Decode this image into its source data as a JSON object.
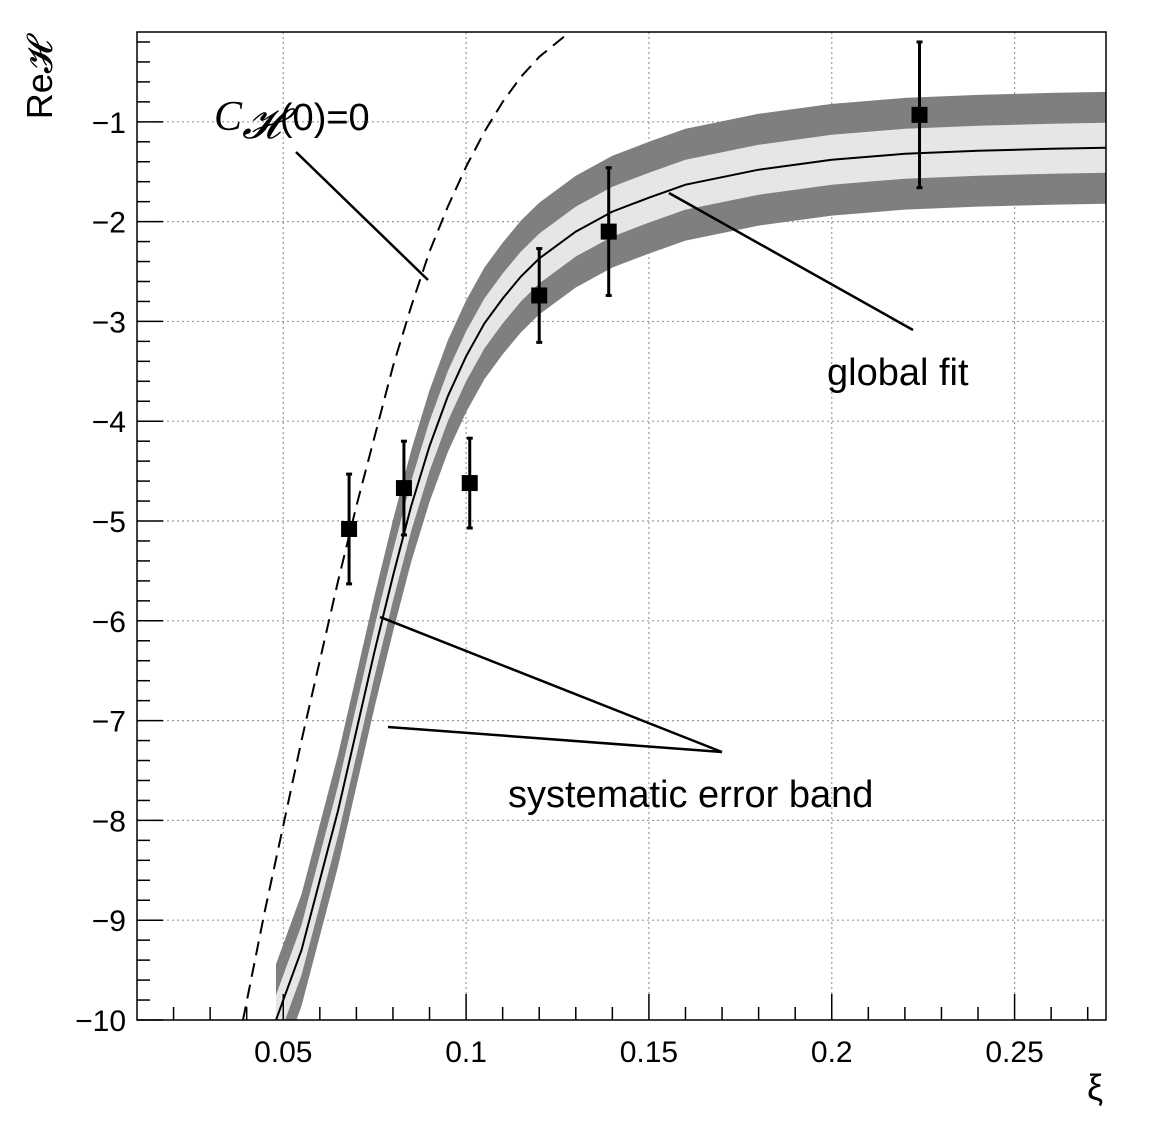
{
  "chart_data": {
    "type": "scatter",
    "xlabel": "ξ",
    "ylabel": "Re𝓗",
    "xlim": [
      0.01,
      0.275
    ],
    "ylim": [
      -10,
      -0.1
    ],
    "grid": true,
    "x_ticks": [
      "0.05",
      "0.1",
      "0.15",
      "0.2",
      "0.25"
    ],
    "x_tick_values": [
      0.05,
      0.1,
      0.15,
      0.2,
      0.25
    ],
    "y_ticks": [
      "−1",
      "−2",
      "−3",
      "−4",
      "−5",
      "−6",
      "−7",
      "−8",
      "−9",
      "−10"
    ],
    "y_tick_values": [
      -1,
      -2,
      -3,
      -4,
      -5,
      -6,
      -7,
      -8,
      -9,
      -10
    ],
    "points": [
      {
        "x": 0.068,
        "y": -5.08,
        "err": 0.55
      },
      {
        "x": 0.083,
        "y": -4.67,
        "err": 0.47
      },
      {
        "x": 0.101,
        "y": -4.62,
        "err": 0.45
      },
      {
        "x": 0.12,
        "y": -2.74,
        "err": 0.47
      },
      {
        "x": 0.139,
        "y": -2.1,
        "err": 0.64
      },
      {
        "x": 0.224,
        "y": -0.93,
        "err": 0.73
      }
    ],
    "global_fit": {
      "x": [
        0.048,
        0.055,
        0.06,
        0.065,
        0.07,
        0.075,
        0.08,
        0.085,
        0.09,
        0.095,
        0.1,
        0.105,
        0.11,
        0.115,
        0.12,
        0.13,
        0.14,
        0.15,
        0.16,
        0.18,
        0.2,
        0.22,
        0.24,
        0.26,
        0.275
      ],
      "y": [
        -10.0,
        -9.3,
        -8.6,
        -7.9,
        -7.1,
        -6.3,
        -5.55,
        -4.85,
        -4.25,
        -3.75,
        -3.35,
        -3.02,
        -2.77,
        -2.55,
        -2.37,
        -2.1,
        -1.9,
        -1.76,
        -1.63,
        -1.48,
        -1.38,
        -1.32,
        -1.29,
        -1.27,
        -1.26
      ],
      "inner_halfwidth": 0.25,
      "outer_halfwidth": 0.56
    },
    "c_zero_curve": {
      "x": [
        0.039,
        0.045,
        0.05,
        0.055,
        0.06,
        0.065,
        0.07,
        0.075,
        0.08,
        0.085,
        0.09,
        0.095,
        0.1,
        0.105,
        0.11,
        0.115,
        0.12,
        0.125,
        0.13,
        0.134
      ],
      "y": [
        -10.0,
        -8.9,
        -8.05,
        -7.2,
        -6.4,
        -5.6,
        -4.85,
        -4.15,
        -3.45,
        -2.85,
        -2.3,
        -1.85,
        -1.45,
        -1.1,
        -0.8,
        -0.55,
        -0.35,
        -0.2,
        -0.05,
        0.05
      ]
    },
    "colors": {
      "outer_band": "#7f7f7f",
      "inner_band": "#e6e6e6",
      "markers": "#000000",
      "grid": "#9a9a9a"
    }
  },
  "annotations": {
    "c_zero_label_main": "C",
    "c_zero_label_sub": "𝓗",
    "c_zero_label_rest": "(0)=0",
    "global_fit_label": "global fit",
    "error_band_label": "systematic error band"
  }
}
